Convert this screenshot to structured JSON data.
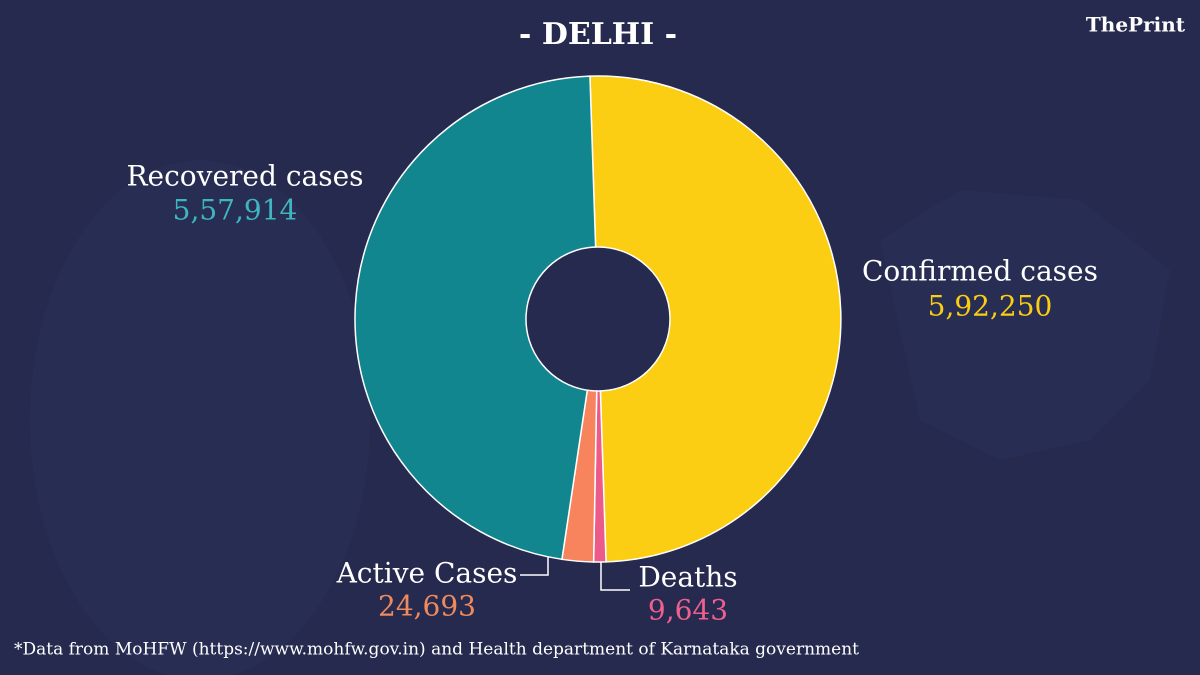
{
  "chart_data": {
    "type": "donut",
    "title": "- DELHI -",
    "brand": "ThePrint",
    "footnote": "*Data from MoHFW (https://www.mohfw.gov.in) and Health department of Karnataka government",
    "categories": [
      "Confirmed cases",
      "Deaths",
      "Active Cases",
      "Recovered cases"
    ],
    "values": [
      592250,
      9643,
      24693,
      557914
    ],
    "value_labels": [
      "5,92,250",
      "9,643",
      "24,693",
      "5,57,914"
    ],
    "colors": [
      "#fbce13",
      "#ec5a8a",
      "#f7845c",
      "#12868f"
    ],
    "label_colors": [
      "#fbce13",
      "#ef5f90",
      "#f08a5d",
      "#3fb6bf"
    ]
  }
}
